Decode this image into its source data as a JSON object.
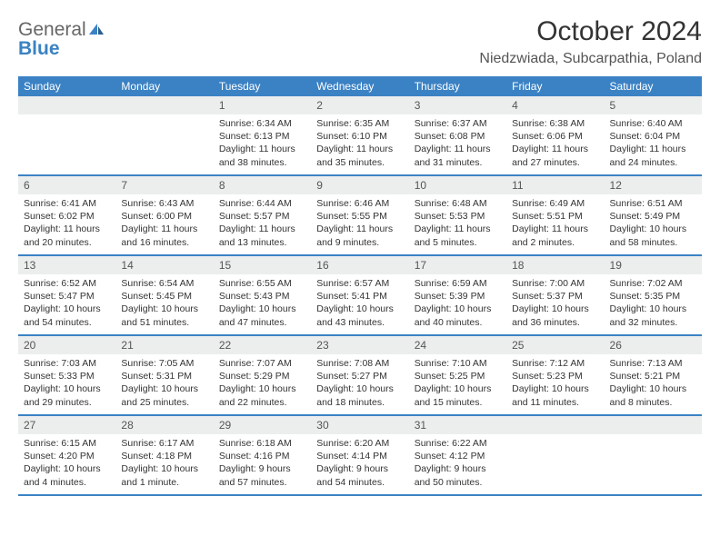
{
  "logo": {
    "general": "General",
    "blue": "Blue"
  },
  "title": "October 2024",
  "location": "Niedzwiada, Subcarpathia, Poland",
  "weekdays": [
    "Sunday",
    "Monday",
    "Tuesday",
    "Wednesday",
    "Thursday",
    "Friday",
    "Saturday"
  ],
  "colors": {
    "header_bg": "#3b82c4",
    "daynum_bg": "#eceded",
    "border": "#3b82c4",
    "text": "#333333",
    "logo_gray": "#666666",
    "logo_blue": "#3b82c4"
  },
  "weeks": [
    [
      null,
      null,
      {
        "n": "1",
        "sr": "6:34 AM",
        "ss": "6:13 PM",
        "dl": "11 hours and 38 minutes."
      },
      {
        "n": "2",
        "sr": "6:35 AM",
        "ss": "6:10 PM",
        "dl": "11 hours and 35 minutes."
      },
      {
        "n": "3",
        "sr": "6:37 AM",
        "ss": "6:08 PM",
        "dl": "11 hours and 31 minutes."
      },
      {
        "n": "4",
        "sr": "6:38 AM",
        "ss": "6:06 PM",
        "dl": "11 hours and 27 minutes."
      },
      {
        "n": "5",
        "sr": "6:40 AM",
        "ss": "6:04 PM",
        "dl": "11 hours and 24 minutes."
      }
    ],
    [
      {
        "n": "6",
        "sr": "6:41 AM",
        "ss": "6:02 PM",
        "dl": "11 hours and 20 minutes."
      },
      {
        "n": "7",
        "sr": "6:43 AM",
        "ss": "6:00 PM",
        "dl": "11 hours and 16 minutes."
      },
      {
        "n": "8",
        "sr": "6:44 AM",
        "ss": "5:57 PM",
        "dl": "11 hours and 13 minutes."
      },
      {
        "n": "9",
        "sr": "6:46 AM",
        "ss": "5:55 PM",
        "dl": "11 hours and 9 minutes."
      },
      {
        "n": "10",
        "sr": "6:48 AM",
        "ss": "5:53 PM",
        "dl": "11 hours and 5 minutes."
      },
      {
        "n": "11",
        "sr": "6:49 AM",
        "ss": "5:51 PM",
        "dl": "11 hours and 2 minutes."
      },
      {
        "n": "12",
        "sr": "6:51 AM",
        "ss": "5:49 PM",
        "dl": "10 hours and 58 minutes."
      }
    ],
    [
      {
        "n": "13",
        "sr": "6:52 AM",
        "ss": "5:47 PM",
        "dl": "10 hours and 54 minutes."
      },
      {
        "n": "14",
        "sr": "6:54 AM",
        "ss": "5:45 PM",
        "dl": "10 hours and 51 minutes."
      },
      {
        "n": "15",
        "sr": "6:55 AM",
        "ss": "5:43 PM",
        "dl": "10 hours and 47 minutes."
      },
      {
        "n": "16",
        "sr": "6:57 AM",
        "ss": "5:41 PM",
        "dl": "10 hours and 43 minutes."
      },
      {
        "n": "17",
        "sr": "6:59 AM",
        "ss": "5:39 PM",
        "dl": "10 hours and 40 minutes."
      },
      {
        "n": "18",
        "sr": "7:00 AM",
        "ss": "5:37 PM",
        "dl": "10 hours and 36 minutes."
      },
      {
        "n": "19",
        "sr": "7:02 AM",
        "ss": "5:35 PM",
        "dl": "10 hours and 32 minutes."
      }
    ],
    [
      {
        "n": "20",
        "sr": "7:03 AM",
        "ss": "5:33 PM",
        "dl": "10 hours and 29 minutes."
      },
      {
        "n": "21",
        "sr": "7:05 AM",
        "ss": "5:31 PM",
        "dl": "10 hours and 25 minutes."
      },
      {
        "n": "22",
        "sr": "7:07 AM",
        "ss": "5:29 PM",
        "dl": "10 hours and 22 minutes."
      },
      {
        "n": "23",
        "sr": "7:08 AM",
        "ss": "5:27 PM",
        "dl": "10 hours and 18 minutes."
      },
      {
        "n": "24",
        "sr": "7:10 AM",
        "ss": "5:25 PM",
        "dl": "10 hours and 15 minutes."
      },
      {
        "n": "25",
        "sr": "7:12 AM",
        "ss": "5:23 PM",
        "dl": "10 hours and 11 minutes."
      },
      {
        "n": "26",
        "sr": "7:13 AM",
        "ss": "5:21 PM",
        "dl": "10 hours and 8 minutes."
      }
    ],
    [
      {
        "n": "27",
        "sr": "6:15 AM",
        "ss": "4:20 PM",
        "dl": "10 hours and 4 minutes."
      },
      {
        "n": "28",
        "sr": "6:17 AM",
        "ss": "4:18 PM",
        "dl": "10 hours and 1 minute."
      },
      {
        "n": "29",
        "sr": "6:18 AM",
        "ss": "4:16 PM",
        "dl": "9 hours and 57 minutes."
      },
      {
        "n": "30",
        "sr": "6:20 AM",
        "ss": "4:14 PM",
        "dl": "9 hours and 54 minutes."
      },
      {
        "n": "31",
        "sr": "6:22 AM",
        "ss": "4:12 PM",
        "dl": "9 hours and 50 minutes."
      },
      null,
      null
    ]
  ],
  "labels": {
    "sunrise": "Sunrise:",
    "sunset": "Sunset:",
    "daylight": "Daylight:"
  }
}
